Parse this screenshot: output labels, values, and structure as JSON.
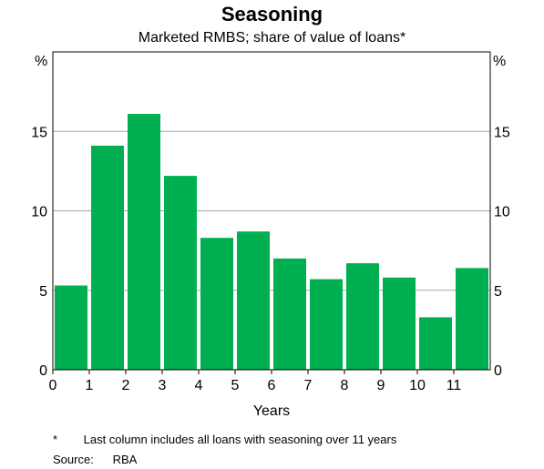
{
  "chart_data": {
    "type": "bar",
    "title": "Seasoning",
    "subtitle": "Marketed RMBS; share of value of loans*",
    "xlabel": "Years",
    "ylabel_left": "%",
    "ylabel_right": "%",
    "x_ticks": [
      "0",
      "1",
      "2",
      "3",
      "4",
      "5",
      "6",
      "7",
      "8",
      "9",
      "10",
      "11"
    ],
    "categories": [
      "0-1",
      "1-2",
      "2-3",
      "3-4",
      "4-5",
      "5-6",
      "6-7",
      "7-8",
      "8-9",
      "9-10",
      "10-11",
      "11+"
    ],
    "values": [
      5.3,
      14.1,
      16.1,
      12.2,
      8.3,
      8.7,
      7.0,
      5.7,
      6.7,
      5.8,
      3.3,
      6.4
    ],
    "ylim": [
      0,
      20
    ],
    "y_ticks": [
      "0",
      "5",
      "10",
      "15"
    ],
    "grid": true,
    "bar_color": "#00b050"
  },
  "footnote": {
    "mark": "*",
    "text": "Last column includes all loans with seasoning over 11 years"
  },
  "source": {
    "label": "Source:",
    "value": "RBA"
  }
}
